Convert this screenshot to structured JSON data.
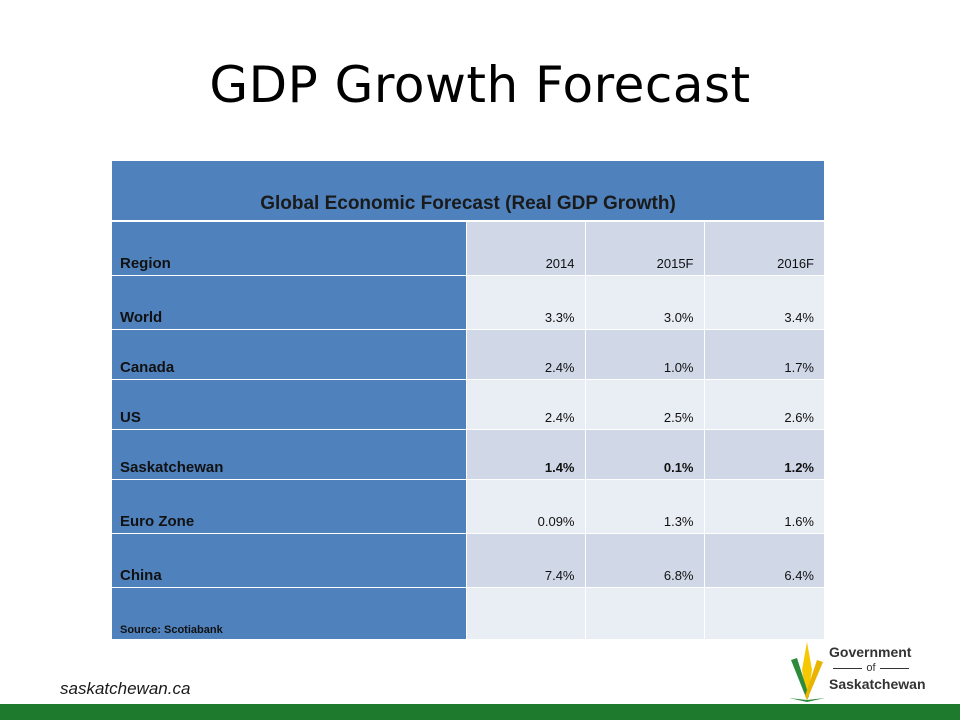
{
  "title": "GDP Growth Forecast",
  "table": {
    "caption": "Global Economic Forecast (Real GDP Growth)",
    "header": {
      "region": "Region",
      "years": [
        "2014",
        "2015F",
        "2016F"
      ]
    },
    "rows": [
      {
        "region": "World",
        "values": [
          "3.3%",
          "3.0%",
          "3.4%"
        ]
      },
      {
        "region": "Canada",
        "values": [
          "2.4%",
          "1.0%",
          "1.7%"
        ]
      },
      {
        "region": "US",
        "values": [
          "2.4%",
          "2.5%",
          "2.6%"
        ]
      },
      {
        "region": "Saskatchewan",
        "values": [
          "1.4%",
          "0.1%",
          "1.2%"
        ]
      },
      {
        "region": "Euro Zone",
        "values": [
          "0.09%",
          "1.3%",
          "1.6%"
        ]
      },
      {
        "region": "China",
        "values": [
          "7.4%",
          "6.8%",
          "6.4%"
        ]
      }
    ],
    "source": "Source: Scotiabank"
  },
  "footer": {
    "url": "saskatchewan.ca",
    "logo_line1": "Government",
    "logo_of": "of",
    "logo_line3": "Saskatchewan",
    "bar_color": "#1e7a2c"
  }
}
